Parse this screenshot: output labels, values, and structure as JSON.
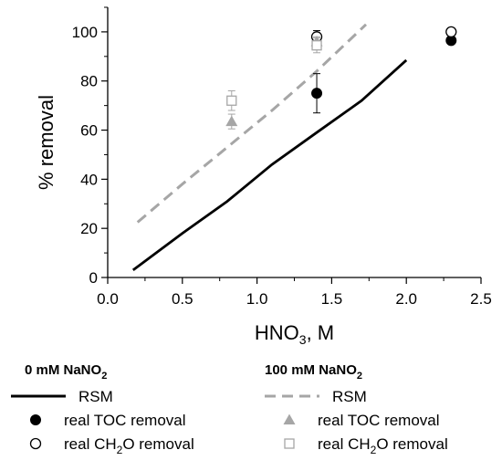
{
  "chart_data": {
    "type": "scatter",
    "xlabel": "HNO3, M",
    "xlabel_parts": [
      "HNO",
      "3",
      ", M"
    ],
    "ylabel": "% removal",
    "xlim": [
      0.0,
      2.5
    ],
    "ylim": [
      0,
      110
    ],
    "xticks": [
      0.0,
      0.5,
      1.0,
      1.5,
      2.0,
      2.5
    ],
    "xtick_labels": [
      "0.0",
      "0.5",
      "1.0",
      "1.5",
      "2.0",
      "2.5"
    ],
    "yticks": [
      0,
      20,
      40,
      60,
      80,
      100
    ],
    "ytick_labels": [
      "0",
      "20",
      "40",
      "60",
      "80",
      "100"
    ],
    "grid": false,
    "legend_position": "bottom",
    "groups": [
      {
        "heading": "0 mM NaNO2",
        "heading_parts": [
          "0 mM NaNO",
          "2"
        ],
        "color": "#000000",
        "series": [
          {
            "name": "RSM",
            "kind": "line",
            "style": "solid",
            "points": [
              [
                0.17,
                3
              ],
              [
                0.5,
                18
              ],
              [
                0.8,
                31
              ],
              [
                1.1,
                46
              ],
              [
                1.4,
                59
              ],
              [
                1.7,
                72
              ],
              [
                2.0,
                88.5
              ]
            ]
          },
          {
            "name": "real TOC removal",
            "kind": "marker",
            "marker": "filled-circle",
            "points": [
              [
                1.4,
                75,
                8
              ],
              [
                2.3,
                96.5,
                1
              ]
            ]
          },
          {
            "name": "real CH2O removal",
            "name_parts": [
              "real CH",
              "2",
              "O removal"
            ],
            "kind": "marker",
            "marker": "open-circle",
            "points": [
              [
                1.4,
                98,
                2.5
              ],
              [
                2.3,
                100,
                0
              ]
            ]
          }
        ]
      },
      {
        "heading": "100 mM NaNO2",
        "heading_parts": [
          "100 mM NaNO",
          "2"
        ],
        "color": "#a6a6a6",
        "series": [
          {
            "name": "RSM",
            "kind": "line",
            "style": "dashed",
            "points": [
              [
                0.2,
                22.5
              ],
              [
                0.5,
                38
              ],
              [
                0.8,
                53
              ],
              [
                1.1,
                68
              ],
              [
                1.4,
                84
              ],
              [
                1.73,
                103
              ]
            ]
          },
          {
            "name": "real TOC removal",
            "kind": "marker",
            "marker": "filled-triangle",
            "points": [
              [
                0.83,
                63.5,
                3
              ],
              [
                1.4,
                96,
                2
              ]
            ]
          },
          {
            "name": "real CH2O removal",
            "name_parts": [
              "real CH",
              "2",
              "O removal"
            ],
            "kind": "marker",
            "marker": "open-square",
            "points": [
              [
                0.83,
                72,
                4
              ],
              [
                1.4,
                94.5,
                3
              ]
            ]
          }
        ]
      }
    ]
  }
}
